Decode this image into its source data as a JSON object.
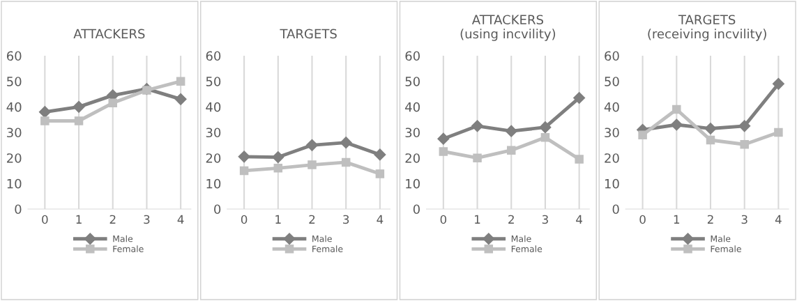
{
  "chart_data": [
    {
      "type": "line",
      "title": "ATTACKERS",
      "categories": [
        "0",
        "1",
        "2",
        "3",
        "4"
      ],
      "ylim": [
        0,
        60
      ],
      "yticks": [
        0,
        10,
        20,
        30,
        40,
        50,
        60
      ],
      "grid": "x",
      "legend": "bottom",
      "series": [
        {
          "name": "Male",
          "color": "#7f7f7f",
          "marker": "diamond",
          "values": [
            38,
            40,
            44.5,
            47,
            43
          ]
        },
        {
          "name": "Female",
          "color": "#bfbfbf",
          "marker": "square",
          "values": [
            34.5,
            34.5,
            41.5,
            46.5,
            50
          ]
        }
      ]
    },
    {
      "type": "line",
      "title": "TARGETS",
      "categories": [
        "0",
        "1",
        "2",
        "3",
        "4"
      ],
      "ylim": [
        0,
        60
      ],
      "yticks": [
        0,
        10,
        20,
        30,
        40,
        50,
        60
      ],
      "grid": "x",
      "legend": "bottom",
      "series": [
        {
          "name": "Male",
          "color": "#7f7f7f",
          "marker": "diamond",
          "values": [
            20.5,
            20.3,
            25,
            26,
            21.3
          ]
        },
        {
          "name": "Female",
          "color": "#bfbfbf",
          "marker": "square",
          "values": [
            15,
            16,
            17.3,
            18.3,
            13.8
          ]
        }
      ]
    },
    {
      "type": "line",
      "title": "ATTACKERS\n(using incvility)",
      "categories": [
        "0",
        "1",
        "2",
        "3",
        "4"
      ],
      "ylim": [
        0,
        60
      ],
      "yticks": [
        0,
        10,
        20,
        30,
        40,
        50,
        60
      ],
      "grid": "x",
      "legend": "bottom",
      "series": [
        {
          "name": "Male",
          "color": "#7f7f7f",
          "marker": "diamond",
          "values": [
            27.5,
            32.5,
            30.5,
            32,
            43.5
          ]
        },
        {
          "name": "Female",
          "color": "#bfbfbf",
          "marker": "square",
          "values": [
            22.5,
            20,
            23,
            28,
            19.5
          ]
        }
      ]
    },
    {
      "type": "line",
      "title": "TARGETS\n(receiving incvility)",
      "categories": [
        "0",
        "1",
        "2",
        "3",
        "4"
      ],
      "ylim": [
        0,
        60
      ],
      "yticks": [
        0,
        10,
        20,
        30,
        40,
        50,
        60
      ],
      "grid": "x",
      "legend": "bottom",
      "series": [
        {
          "name": "Male",
          "color": "#7f7f7f",
          "marker": "diamond",
          "values": [
            31,
            33,
            31.5,
            32.5,
            49
          ]
        },
        {
          "name": "Female",
          "color": "#bfbfbf",
          "marker": "square",
          "values": [
            29,
            39,
            27,
            25.3,
            30
          ]
        }
      ]
    }
  ]
}
